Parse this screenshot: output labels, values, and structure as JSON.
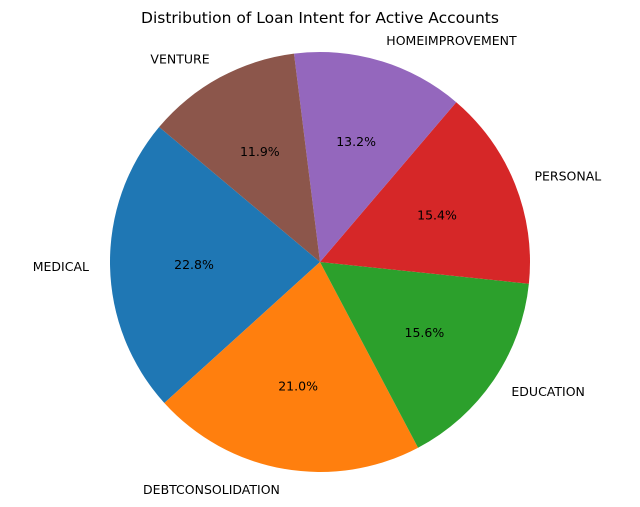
{
  "chart_data": {
    "type": "pie",
    "title": "Distribution of Loan Intent for Active Accounts",
    "start_angle_deg": 140,
    "direction": "counterclockwise",
    "slices": [
      {
        "label": "MEDICAL",
        "percent_label": "22.8%",
        "value": 22.8,
        "color": "#1f77b4"
      },
      {
        "label": "DEBTCONSOLIDATION",
        "percent_label": "21.0%",
        "value": 21.0,
        "color": "#ff7f0e"
      },
      {
        "label": "EDUCATION",
        "percent_label": "15.6%",
        "value": 15.6,
        "color": "#2ca02c"
      },
      {
        "label": "PERSONAL",
        "percent_label": "15.4%",
        "value": 15.4,
        "color": "#d62728"
      },
      {
        "label": "HOMEIMPROVEMENT",
        "percent_label": "13.2%",
        "value": 13.2,
        "color": "#9467bd"
      },
      {
        "label": "VENTURE",
        "percent_label": "11.9%",
        "value": 11.9,
        "color": "#8c564b"
      }
    ]
  }
}
